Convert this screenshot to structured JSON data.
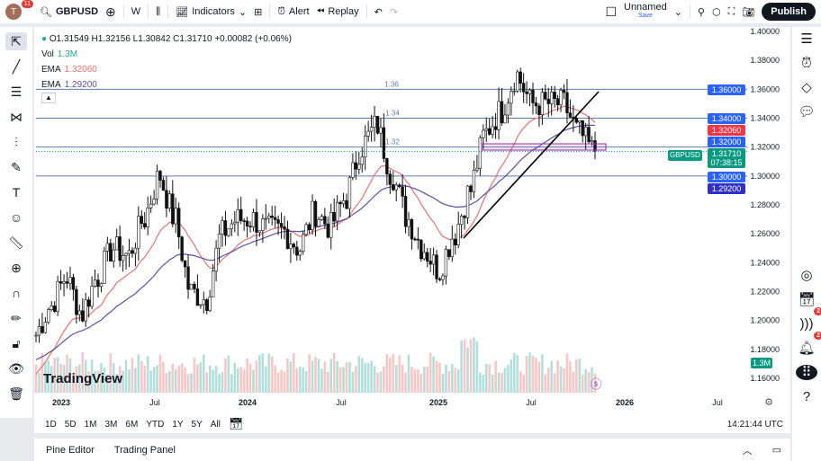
{
  "topbar": {
    "avatar": "T",
    "notifications": "11",
    "symbol": "GBPUSD",
    "interval": "W",
    "indicators": "Indicators",
    "alert": "Alert",
    "replay": "Replay",
    "layout_name": "Unnamed",
    "save": "Save",
    "publish": "Publish"
  },
  "legend": {
    "ohlc": "O1.31549 H1.32156 L1.30842 C1.31710 +0.00082 (+0.06%)",
    "vol_label": "Vol",
    "vol_value": "1.3M",
    "ema1_label": "EMA",
    "ema1_value": "1.32060",
    "ema2_label": "EMA",
    "ema2_value": "1.29200"
  },
  "colors": {
    "up": "#26a69a",
    "down": "#ef5350",
    "ema_fast": "#e57373",
    "ema_slow": "#5c4fa8",
    "level_line": "#5b7bb0",
    "label_blue": "#2962ff",
    "label_red": "#f23645",
    "label_indigo": "#3030c8"
  },
  "price_axis": {
    "ticks": [
      "1.40000",
      "1.38000",
      "1.36000",
      "1.34000",
      "1.32000",
      "1.30000",
      "1.28000",
      "1.26000",
      "1.24000",
      "1.22000",
      "1.20000",
      "1.18000",
      "1.16000"
    ]
  },
  "time_axis": {
    "ticks": [
      "2023",
      "Jul",
      "2024",
      "Jul",
      "2025",
      "Jul",
      "2026",
      "Jul"
    ]
  },
  "levels": [
    {
      "price": 1.36,
      "text": "1.36",
      "label": "1.36000"
    },
    {
      "price": 1.34,
      "text": "1.34",
      "label": "1.34000"
    },
    {
      "price": 1.32,
      "text": "1.32",
      "label": "1.32000"
    },
    {
      "price": 1.3,
      "text": "",
      "label": "1.30000"
    }
  ],
  "price_labels": {
    "ema_fast": "1.32060",
    "ema_slow": "1.29200",
    "symbol_tag": "GBPUSD",
    "last": "1.31710",
    "countdown": "07:38:15",
    "volume": "1.3M"
  },
  "chart_data": {
    "type": "candlestick",
    "interval": "weekly",
    "ylim": [
      1.16,
      1.4
    ],
    "monthly_closes": [
      [
        "2022-11",
        1.19
      ],
      [
        "2022-12",
        1.21
      ],
      [
        "2023-01",
        1.23
      ],
      [
        "2023-02",
        1.205
      ],
      [
        "2023-03",
        1.23
      ],
      [
        "2023-04",
        1.25
      ],
      [
        "2023-05",
        1.245
      ],
      [
        "2023-06",
        1.27
      ],
      [
        "2023-07",
        1.3
      ],
      [
        "2023-08",
        1.27
      ],
      [
        "2023-09",
        1.22
      ],
      [
        "2023-10",
        1.215
      ],
      [
        "2023-11",
        1.26
      ],
      [
        "2023-12",
        1.27
      ],
      [
        "2024-01",
        1.27
      ],
      [
        "2024-02",
        1.263
      ],
      [
        "2024-03",
        1.262
      ],
      [
        "2024-04",
        1.25
      ],
      [
        "2024-05",
        1.275
      ],
      [
        "2024-06",
        1.265
      ],
      [
        "2024-07",
        1.285
      ],
      [
        "2024-08",
        1.32
      ],
      [
        "2024-09",
        1.335
      ],
      [
        "2024-10",
        1.3
      ],
      [
        "2024-11",
        1.27
      ],
      [
        "2024-12",
        1.25
      ],
      [
        "2025-01",
        1.235
      ],
      [
        "2025-02",
        1.26
      ],
      [
        "2025-03",
        1.29
      ],
      [
        "2025-04",
        1.33
      ],
      [
        "2025-05",
        1.345
      ],
      [
        "2025-06",
        1.37
      ],
      [
        "2025-07",
        1.35
      ],
      [
        "2025-08",
        1.35
      ],
      [
        "2025-09",
        1.35
      ],
      [
        "2025-10",
        1.33
      ],
      [
        "2025-11",
        1.317
      ]
    ]
  },
  "range_buttons": [
    "1D",
    "5D",
    "1M",
    "3M",
    "6M",
    "YTD",
    "1Y",
    "5Y",
    "All"
  ],
  "clock": "14:21:44 UTC",
  "bottom_tabs": [
    "Pine Editor",
    "Trading Panel"
  ],
  "watermark": "TradingView",
  "right_badges": {
    "ideas": "2",
    "alerts": "2"
  }
}
